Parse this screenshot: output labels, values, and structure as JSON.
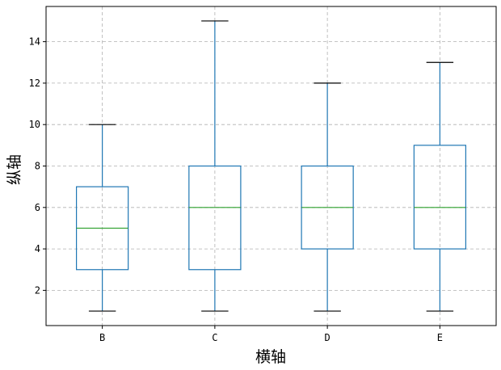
{
  "chart_data": {
    "type": "box",
    "xlabel": "横轴",
    "ylabel": "纵轴",
    "ylim": [
      0.3,
      15.7
    ],
    "yticks": [
      2,
      4,
      6,
      8,
      10,
      12,
      14
    ],
    "grid": true,
    "categories": [
      "B",
      "C",
      "D",
      "E"
    ],
    "boxes": [
      {
        "label": "B",
        "whisker_low": 1,
        "q1": 3,
        "median": 5,
        "q3": 7,
        "whisker_high": 10
      },
      {
        "label": "C",
        "whisker_low": 1,
        "q1": 3,
        "median": 6,
        "q3": 8,
        "whisker_high": 15
      },
      {
        "label": "D",
        "whisker_low": 1,
        "q1": 4,
        "median": 6,
        "q3": 8,
        "whisker_high": 12
      },
      {
        "label": "E",
        "whisker_low": 1,
        "q1": 4,
        "median": 6,
        "q3": 9,
        "whisker_high": 13
      }
    ],
    "colors": {
      "box": "#1f77b4",
      "median": "#2ca02c",
      "cap": "#000000",
      "grid": "#b0b0b0"
    }
  }
}
